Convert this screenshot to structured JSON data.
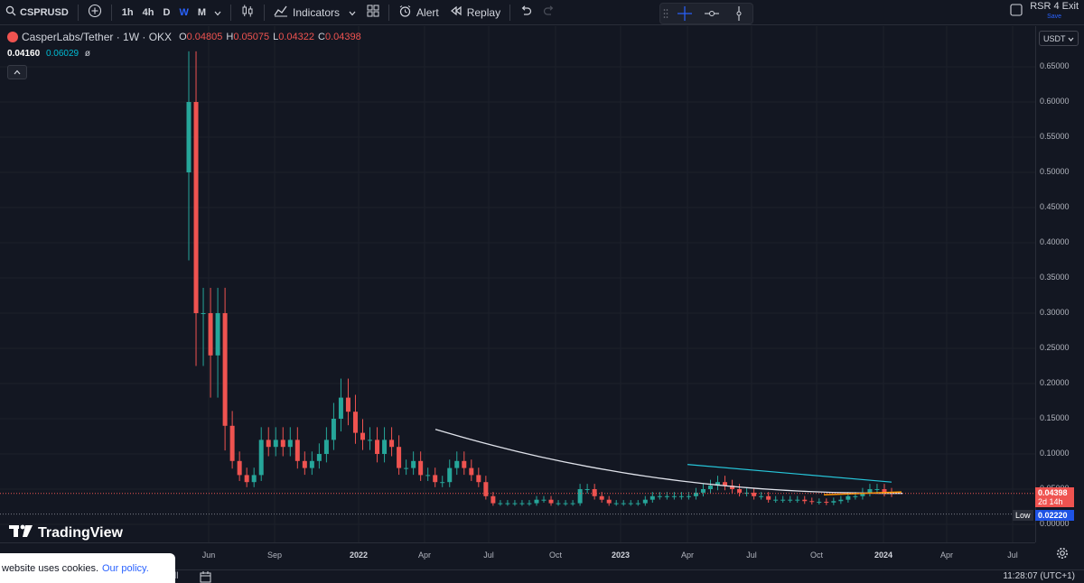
{
  "toolbar": {
    "symbol": "CSPRUSD",
    "timeframes": [
      "1h",
      "4h",
      "D",
      "W",
      "M"
    ],
    "active_timeframe": "W",
    "indicators_label": "Indicators",
    "alert_label": "Alert",
    "replay_label": "Replay"
  },
  "layout": {
    "name": "RSR 4 Exit",
    "save_label": "Save"
  },
  "legend": {
    "title": "CasperLabs/Tether · 1W · OKX",
    "o_label": "O",
    "o_value": "0.04805",
    "h_label": "H",
    "h_value": "0.05075",
    "l_label": "L",
    "l_value": "0.04322",
    "c_label": "C",
    "c_value": "0.04398",
    "ind_value1": "0.04160",
    "ind_value2": "0.06029",
    "ind_value3": "ø"
  },
  "price_scale": {
    "currency": "USDT",
    "ticks": [
      "0.65000",
      "0.60000",
      "0.55000",
      "0.50000",
      "0.45000",
      "0.40000",
      "0.35000",
      "0.30000",
      "0.25000",
      "0.20000",
      "0.15000",
      "0.10000",
      "0.05000",
      "0.00000"
    ],
    "current_price": "0.04398",
    "countdown": "2d 14h",
    "low_label": "Low",
    "low_value": "0.02220"
  },
  "time_axis": {
    "ticks": [
      {
        "label": "Jun",
        "year": false
      },
      {
        "label": "Sep",
        "year": false
      },
      {
        "label": "2022",
        "year": true
      },
      {
        "label": "Apr",
        "year": false
      },
      {
        "label": "Jul",
        "year": false
      },
      {
        "label": "Oct",
        "year": false
      },
      {
        "label": "2023",
        "year": true
      },
      {
        "label": "Apr",
        "year": false
      },
      {
        "label": "Jul",
        "year": false
      },
      {
        "label": "Oct",
        "year": false
      },
      {
        "label": "2024",
        "year": true
      },
      {
        "label": "Apr",
        "year": false
      },
      {
        "label": "Jul",
        "year": false
      }
    ]
  },
  "brand": "TradingView",
  "cookie": {
    "text": "website uses cookies.",
    "link": "Our policy."
  },
  "bottom": {
    "clock": "11:28:07 (UTC+1)",
    "partial_label": "ll"
  },
  "chart_data": {
    "type": "candlestick",
    "title": "CasperLabs/Tether · 1W · OKX",
    "ylim": [
      0,
      0.68
    ],
    "x_labels": [
      "Jun",
      "Sep",
      "2022",
      "Apr",
      "Jul",
      "Oct",
      "2023",
      "Apr",
      "Jul",
      "Oct",
      "2024",
      "Apr",
      "Jul"
    ],
    "close_series": [
      0.6,
      0.3,
      0.3,
      0.24,
      0.3,
      0.14,
      0.09,
      0.07,
      0.06,
      0.07,
      0.12,
      0.11,
      0.12,
      0.11,
      0.12,
      0.09,
      0.08,
      0.09,
      0.1,
      0.12,
      0.15,
      0.18,
      0.16,
      0.13,
      0.12,
      0.12,
      0.1,
      0.12,
      0.11,
      0.08,
      0.08,
      0.09,
      0.07,
      0.07,
      0.06,
      0.06,
      0.08,
      0.09,
      0.08,
      0.07,
      0.06,
      0.04,
      0.03,
      0.03,
      0.03,
      0.03,
      0.03,
      0.03,
      0.035,
      0.035,
      0.03,
      0.03,
      0.03,
      0.03,
      0.05,
      0.05,
      0.04,
      0.035,
      0.03,
      0.03,
      0.03,
      0.03,
      0.03,
      0.035,
      0.04,
      0.04,
      0.04,
      0.04,
      0.04,
      0.04,
      0.045,
      0.05,
      0.055,
      0.06,
      0.055,
      0.05,
      0.045,
      0.045,
      0.04,
      0.04,
      0.035,
      0.035,
      0.035,
      0.035,
      0.035,
      0.033,
      0.032,
      0.032,
      0.031,
      0.033,
      0.035,
      0.04,
      0.04,
      0.045,
      0.05,
      0.05,
      0.045,
      0.044
    ],
    "moving_average": {
      "start": 0.135,
      "end": 0.044
    },
    "trendline_upper": {
      "start": 0.085,
      "end": 0.06
    },
    "current_price": 0.04398,
    "low": 0.0222
  }
}
